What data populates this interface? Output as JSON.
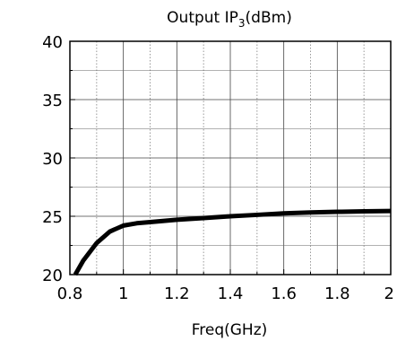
{
  "chart_data": {
    "type": "line",
    "title": {
      "main": "Output IP",
      "subscript": "3",
      "unit": "(dBm)"
    },
    "xlabel": "Freq(GHz)",
    "ylabel": "",
    "xlim": [
      0.8,
      2.0
    ],
    "ylim": [
      20,
      40
    ],
    "x_ticks": [
      {
        "value": 0.8,
        "label": "0.8"
      },
      {
        "value": 1.0,
        "label": "1"
      },
      {
        "value": 1.2,
        "label": "1.2"
      },
      {
        "value": 1.4,
        "label": "1.4"
      },
      {
        "value": 1.6,
        "label": "1.6"
      },
      {
        "value": 1.8,
        "label": "1.8"
      },
      {
        "value": 2.0,
        "label": "2"
      }
    ],
    "y_ticks": [
      {
        "value": 20,
        "label": "20"
      },
      {
        "value": 25,
        "label": "25"
      },
      {
        "value": 30,
        "label": "30"
      },
      {
        "value": 35,
        "label": "35"
      },
      {
        "value": 40,
        "label": "40"
      }
    ],
    "x_minor_gridlines": [
      0.9,
      1.1,
      1.3,
      1.5,
      1.7,
      1.9
    ],
    "y_minor_gridlines": [
      22.5,
      27.5,
      32.5,
      37.5
    ],
    "grid": true,
    "legend": "none",
    "series": [
      {
        "x": [
          0.82,
          0.85,
          0.9,
          0.95,
          0.98,
          1.0,
          1.05,
          1.1,
          1.2,
          1.3,
          1.4,
          1.5,
          1.6,
          1.7,
          1.8,
          1.9,
          2.0
        ],
        "y": [
          20.0,
          21.2,
          22.7,
          23.7,
          24.0,
          24.2,
          24.4,
          24.5,
          24.7,
          24.85,
          25.0,
          25.12,
          25.25,
          25.33,
          25.38,
          25.42,
          25.45
        ],
        "color": "#000000"
      }
    ]
  }
}
